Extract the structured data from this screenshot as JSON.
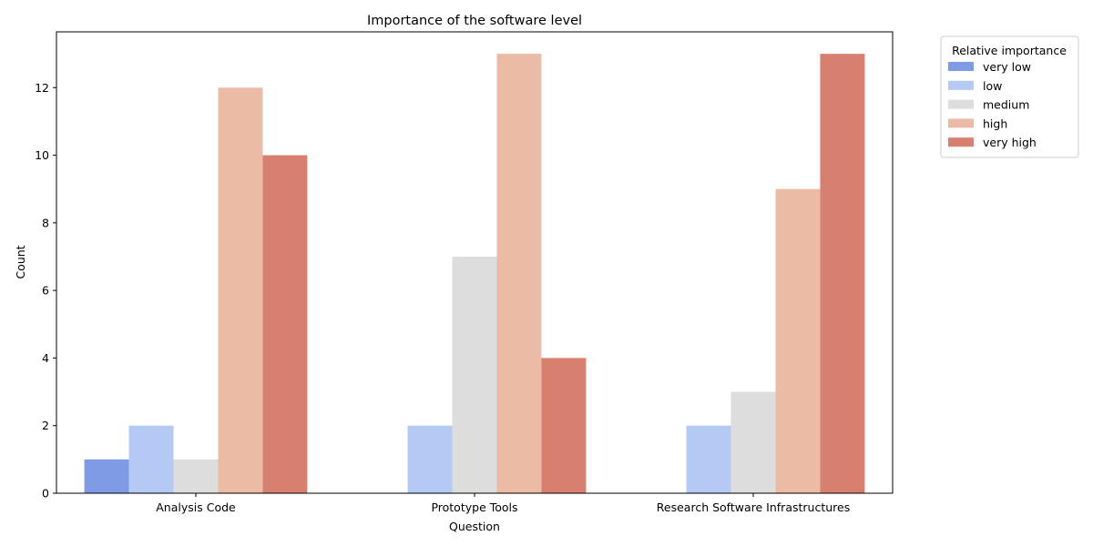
{
  "chart_data": {
    "type": "bar",
    "title": "Importance of the software level",
    "xlabel": "Question",
    "ylabel": "Count",
    "categories": [
      "Analysis Code",
      "Prototype Tools",
      "Research Software Infrastructures"
    ],
    "ylim": [
      0,
      13.65
    ],
    "yticks": [
      0,
      2,
      4,
      6,
      8,
      10,
      12
    ],
    "legend": {
      "title": "Relative importance",
      "placement": "outside-top-right"
    },
    "grid": false,
    "series": [
      {
        "name": "very low",
        "color": "#7f9be6",
        "values": [
          1,
          0,
          0
        ]
      },
      {
        "name": "low",
        "color": "#b4c9f4",
        "values": [
          2,
          2,
          2
        ]
      },
      {
        "name": "medium",
        "color": "#dddddd",
        "values": [
          1,
          7,
          3
        ]
      },
      {
        "name": "high",
        "color": "#ecbba6",
        "values": [
          12,
          13,
          9
        ]
      },
      {
        "name": "very high",
        "color": "#d78070",
        "values": [
          10,
          4,
          13
        ]
      }
    ]
  }
}
